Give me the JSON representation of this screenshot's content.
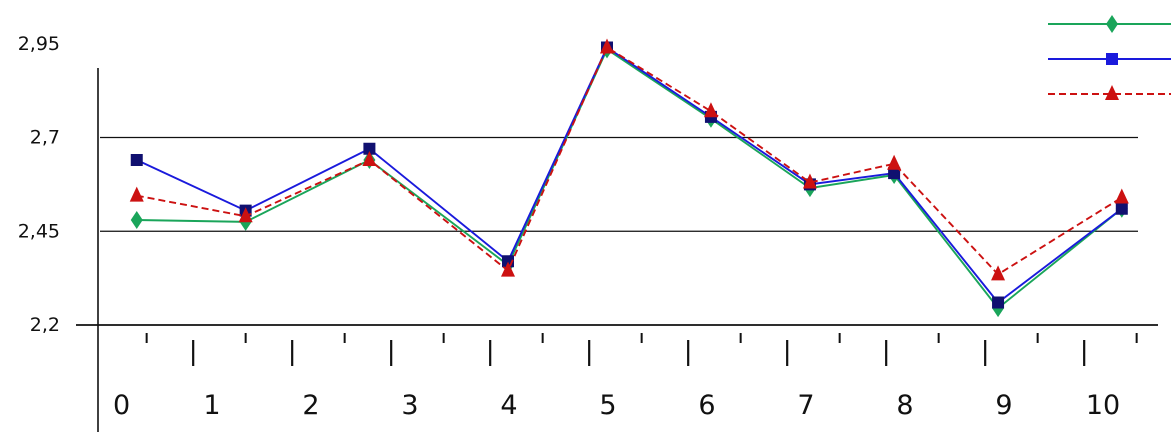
{
  "chart_data": {
    "type": "line",
    "title": "",
    "xlabel": "",
    "ylabel": "",
    "x_tick_labels": [
      "0",
      "1",
      "2",
      "3",
      "4",
      "5",
      "6",
      "7",
      "8",
      "9",
      "10"
    ],
    "y_tick_labels": [
      "2,95",
      "2,7",
      "2,45",
      "2,2"
    ],
    "y_tick_values": [
      2.95,
      2.7,
      2.45,
      2.2
    ],
    "xlim": [
      0,
      10.5
    ],
    "ylim": [
      2.2,
      2.95
    ],
    "grid": "horizontal lines at 2,45 and 2,7",
    "legend": "top-right, markers only",
    "series": [
      {
        "color": "#1aa55a",
        "marker": "diamond",
        "line_style": "solid",
        "x": [
          0.25,
          1.35,
          2.6,
          4.0,
          5.0,
          6.05,
          7.05,
          7.9,
          8.95,
          10.2
        ],
        "y": [
          2.48,
          2.475,
          2.64,
          2.36,
          2.935,
          2.75,
          2.565,
          2.6,
          2.245,
          2.51
        ]
      },
      {
        "color": "#1a1adc",
        "marker": "square",
        "line_style": "solid",
        "x": [
          0.25,
          1.35,
          2.6,
          4.0,
          5.0,
          6.05,
          7.05,
          7.9,
          8.95,
          10.2
        ],
        "y": [
          2.64,
          2.505,
          2.67,
          2.37,
          2.94,
          2.755,
          2.575,
          2.605,
          2.26,
          2.51
        ]
      },
      {
        "color": "#cc1111",
        "marker": "triangle",
        "line_style": "dashed",
        "x": [
          0.25,
          1.35,
          2.6,
          4.0,
          5.0,
          6.05,
          7.05,
          7.9,
          8.95,
          10.2
        ],
        "y": [
          2.545,
          2.49,
          2.64,
          2.345,
          2.94,
          2.77,
          2.58,
          2.63,
          2.335,
          2.54
        ]
      }
    ]
  }
}
